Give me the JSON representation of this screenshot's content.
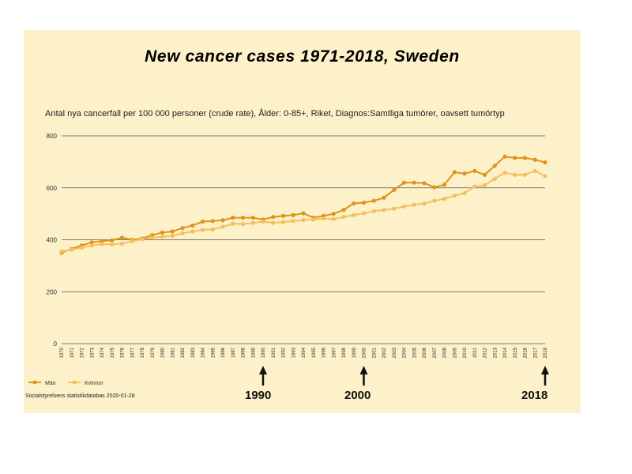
{
  "title": "New cancer cases 1971-2018, Sweden",
  "subtitle": "Antal nya cancerfall per 100 000 personer (crude rate), Ålder: 0-85+, Riket, Diagnos:Samtliga tumörer, oavsett tumörtyp",
  "source": "Socialstyrelsens statistikdatabas 2020-01-28",
  "annotations": [
    {
      "year": "1990",
      "label": "1990"
    },
    {
      "year": "2000",
      "label": "2000"
    },
    {
      "year": "2018",
      "label": "2018"
    }
  ],
  "colors": {
    "panel_bg": "#fdf1c9",
    "man": "#e0921a",
    "kvinnor": "#f5bf5e",
    "grid": "#555555",
    "arrow": "#111111"
  },
  "chart_data": {
    "type": "line",
    "title": "New cancer cases 1971-2018, Sweden",
    "xlabel": "",
    "ylabel": "",
    "ylim": [
      0,
      800
    ],
    "yticks": [
      0,
      200,
      400,
      600,
      800
    ],
    "grid": true,
    "legend": "bottom-left",
    "x": [
      "1970",
      "1971",
      "1972",
      "1973",
      "1974",
      "1975",
      "1976",
      "1977",
      "1978",
      "1979",
      "1980",
      "1981",
      "1982",
      "1983",
      "1984",
      "1985",
      "1986",
      "1987",
      "1988",
      "1989",
      "1990",
      "1991",
      "1992",
      "1993",
      "1994",
      "1995",
      "1996",
      "1997",
      "1998",
      "1999",
      "2000",
      "2001",
      "2002",
      "2003",
      "2004",
      "2005",
      "2006",
      "2007",
      "2008",
      "2009",
      "2010",
      "2011",
      "2012",
      "2013",
      "2014",
      "2015",
      "2016",
      "2017",
      "2018"
    ],
    "series": [
      {
        "name": "Män",
        "values": [
          350,
          365,
          378,
          390,
          395,
          398,
          408,
          400,
          405,
          418,
          428,
          432,
          445,
          455,
          470,
          472,
          475,
          485,
          485,
          485,
          478,
          488,
          492,
          495,
          502,
          485,
          492,
          500,
          515,
          540,
          543,
          550,
          562,
          592,
          620,
          620,
          618,
          602,
          612,
          660,
          655,
          665,
          650,
          685,
          720,
          715,
          715,
          708,
          698
        ]
      },
      {
        "name": "Kvinnor",
        "values": [
          355,
          362,
          370,
          378,
          383,
          382,
          385,
          395,
          402,
          408,
          412,
          415,
          425,
          432,
          438,
          440,
          450,
          462,
          460,
          465,
          470,
          465,
          468,
          472,
          476,
          478,
          482,
          480,
          488,
          495,
          502,
          510,
          515,
          520,
          528,
          535,
          540,
          550,
          558,
          570,
          580,
          605,
          610,
          635,
          658,
          650,
          650,
          665,
          645
        ]
      }
    ]
  }
}
